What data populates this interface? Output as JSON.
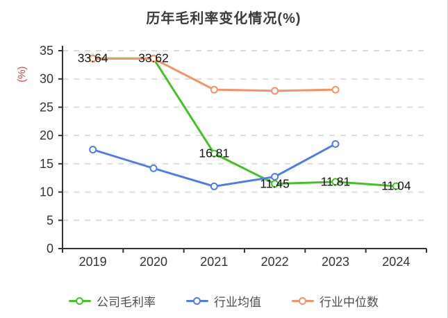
{
  "title": "历年毛利率变化情况(%)",
  "chart_data": {
    "type": "line",
    "categories": [
      "2019",
      "2020",
      "2021",
      "2022",
      "2023",
      "2024"
    ],
    "series": [
      {
        "name": "公司毛利率",
        "color": "#43c227",
        "values": [
          33.64,
          33.62,
          16.81,
          11.45,
          11.81,
          11.04
        ],
        "labels": [
          "33.64",
          "33.62",
          "16.81",
          "11.45",
          "11.81",
          "11.04"
        ]
      },
      {
        "name": "行业均值",
        "color": "#4d7ceb",
        "values": [
          17.5,
          14.2,
          11.0,
          12.7,
          18.5
        ]
      },
      {
        "name": "行业中位数",
        "color": "#f79265",
        "values": [
          33.6,
          33.6,
          28.1,
          27.9,
          28.1
        ]
      }
    ],
    "ylabel": "(%)",
    "ylim": [
      0,
      35
    ],
    "yticks": [
      0,
      5,
      10,
      15,
      20,
      25,
      30,
      35
    ],
    "grid": "horizontal-dashed",
    "legend_position": "bottom",
    "marker": "open-circle"
  },
  "style_colors": {
    "axis": "#333333",
    "tick_label": "#333333",
    "grid_line": "#dcdcdc",
    "data_label": "#141414",
    "y_unit_label": "#e23c3c"
  }
}
